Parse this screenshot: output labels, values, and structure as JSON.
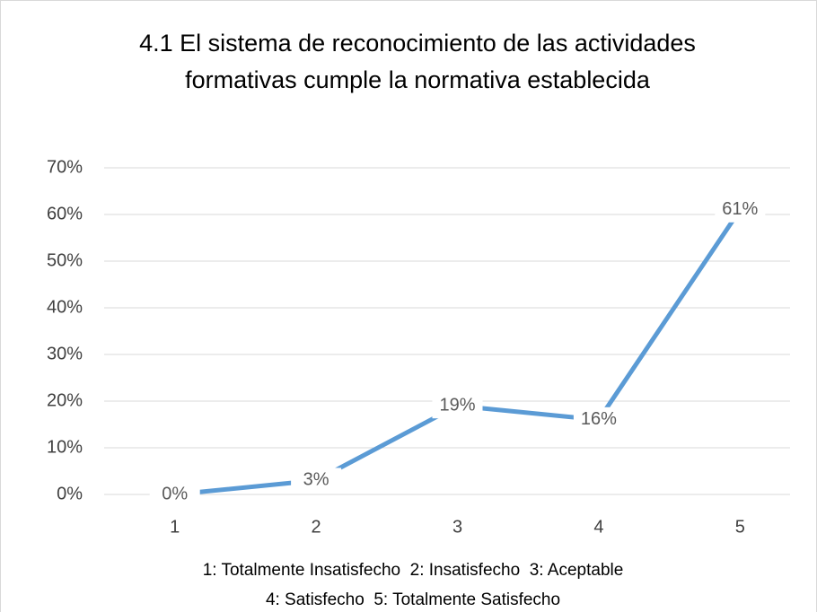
{
  "chart_data": {
    "type": "line",
    "title": [
      "4.1 El sistema de reconocimiento de las actividades",
      "formativas cumple la normativa establecida"
    ],
    "xlabel": [
      "1: Totalmente Insatisfecho  2: Insatisfecho  3: Aceptable",
      "4: Satisfecho  5: Totalmente Satisfecho"
    ],
    "categories": [
      "1",
      "2",
      "3",
      "4",
      "5"
    ],
    "series": [
      {
        "name": null,
        "color": "#5b9bd5",
        "values": [
          0,
          3,
          19,
          16,
          61
        ],
        "value_labels": [
          "0%",
          "3%",
          "19%",
          "16%",
          "61%"
        ]
      }
    ],
    "ylim": [
      0,
      70
    ],
    "yticks": [
      {
        "value": 0,
        "label": "0%"
      },
      {
        "value": 10,
        "label": "10%"
      },
      {
        "value": 20,
        "label": "20%"
      },
      {
        "value": 30,
        "label": "30%"
      },
      {
        "value": 40,
        "label": "40%"
      },
      {
        "value": 50,
        "label": "50%"
      },
      {
        "value": 60,
        "label": "60%"
      },
      {
        "value": 70,
        "label": "70%"
      }
    ],
    "grid": true
  }
}
